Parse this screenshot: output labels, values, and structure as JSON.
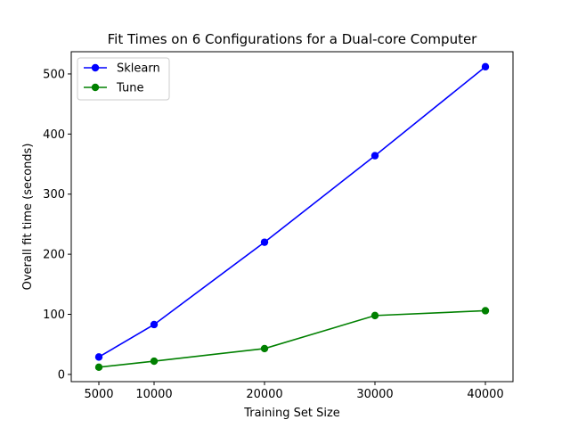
{
  "chart_data": {
    "type": "line",
    "title": "Fit Times on 6 Configurations for a Dual-core Computer",
    "xlabel": "Training Set Size",
    "ylabel": "Overall fit time (seconds)",
    "x": [
      5000,
      10000,
      20000,
      30000,
      40000
    ],
    "xticks": [
      "5000",
      "10000",
      "20000",
      "30000",
      "40000"
    ],
    "yticks": [
      "0",
      "100",
      "200",
      "300",
      "400",
      "500"
    ],
    "xlim": [
      2500,
      42500
    ],
    "ylim": [
      -12,
      537
    ],
    "grid": false,
    "legend_position": "upper-left",
    "series": [
      {
        "name": "Sklearn",
        "color": "#0000ff",
        "values": [
          29,
          83,
          220,
          364,
          512
        ]
      },
      {
        "name": "Tune",
        "color": "#008000",
        "values": [
          12,
          22,
          43,
          98,
          106
        ]
      }
    ]
  }
}
